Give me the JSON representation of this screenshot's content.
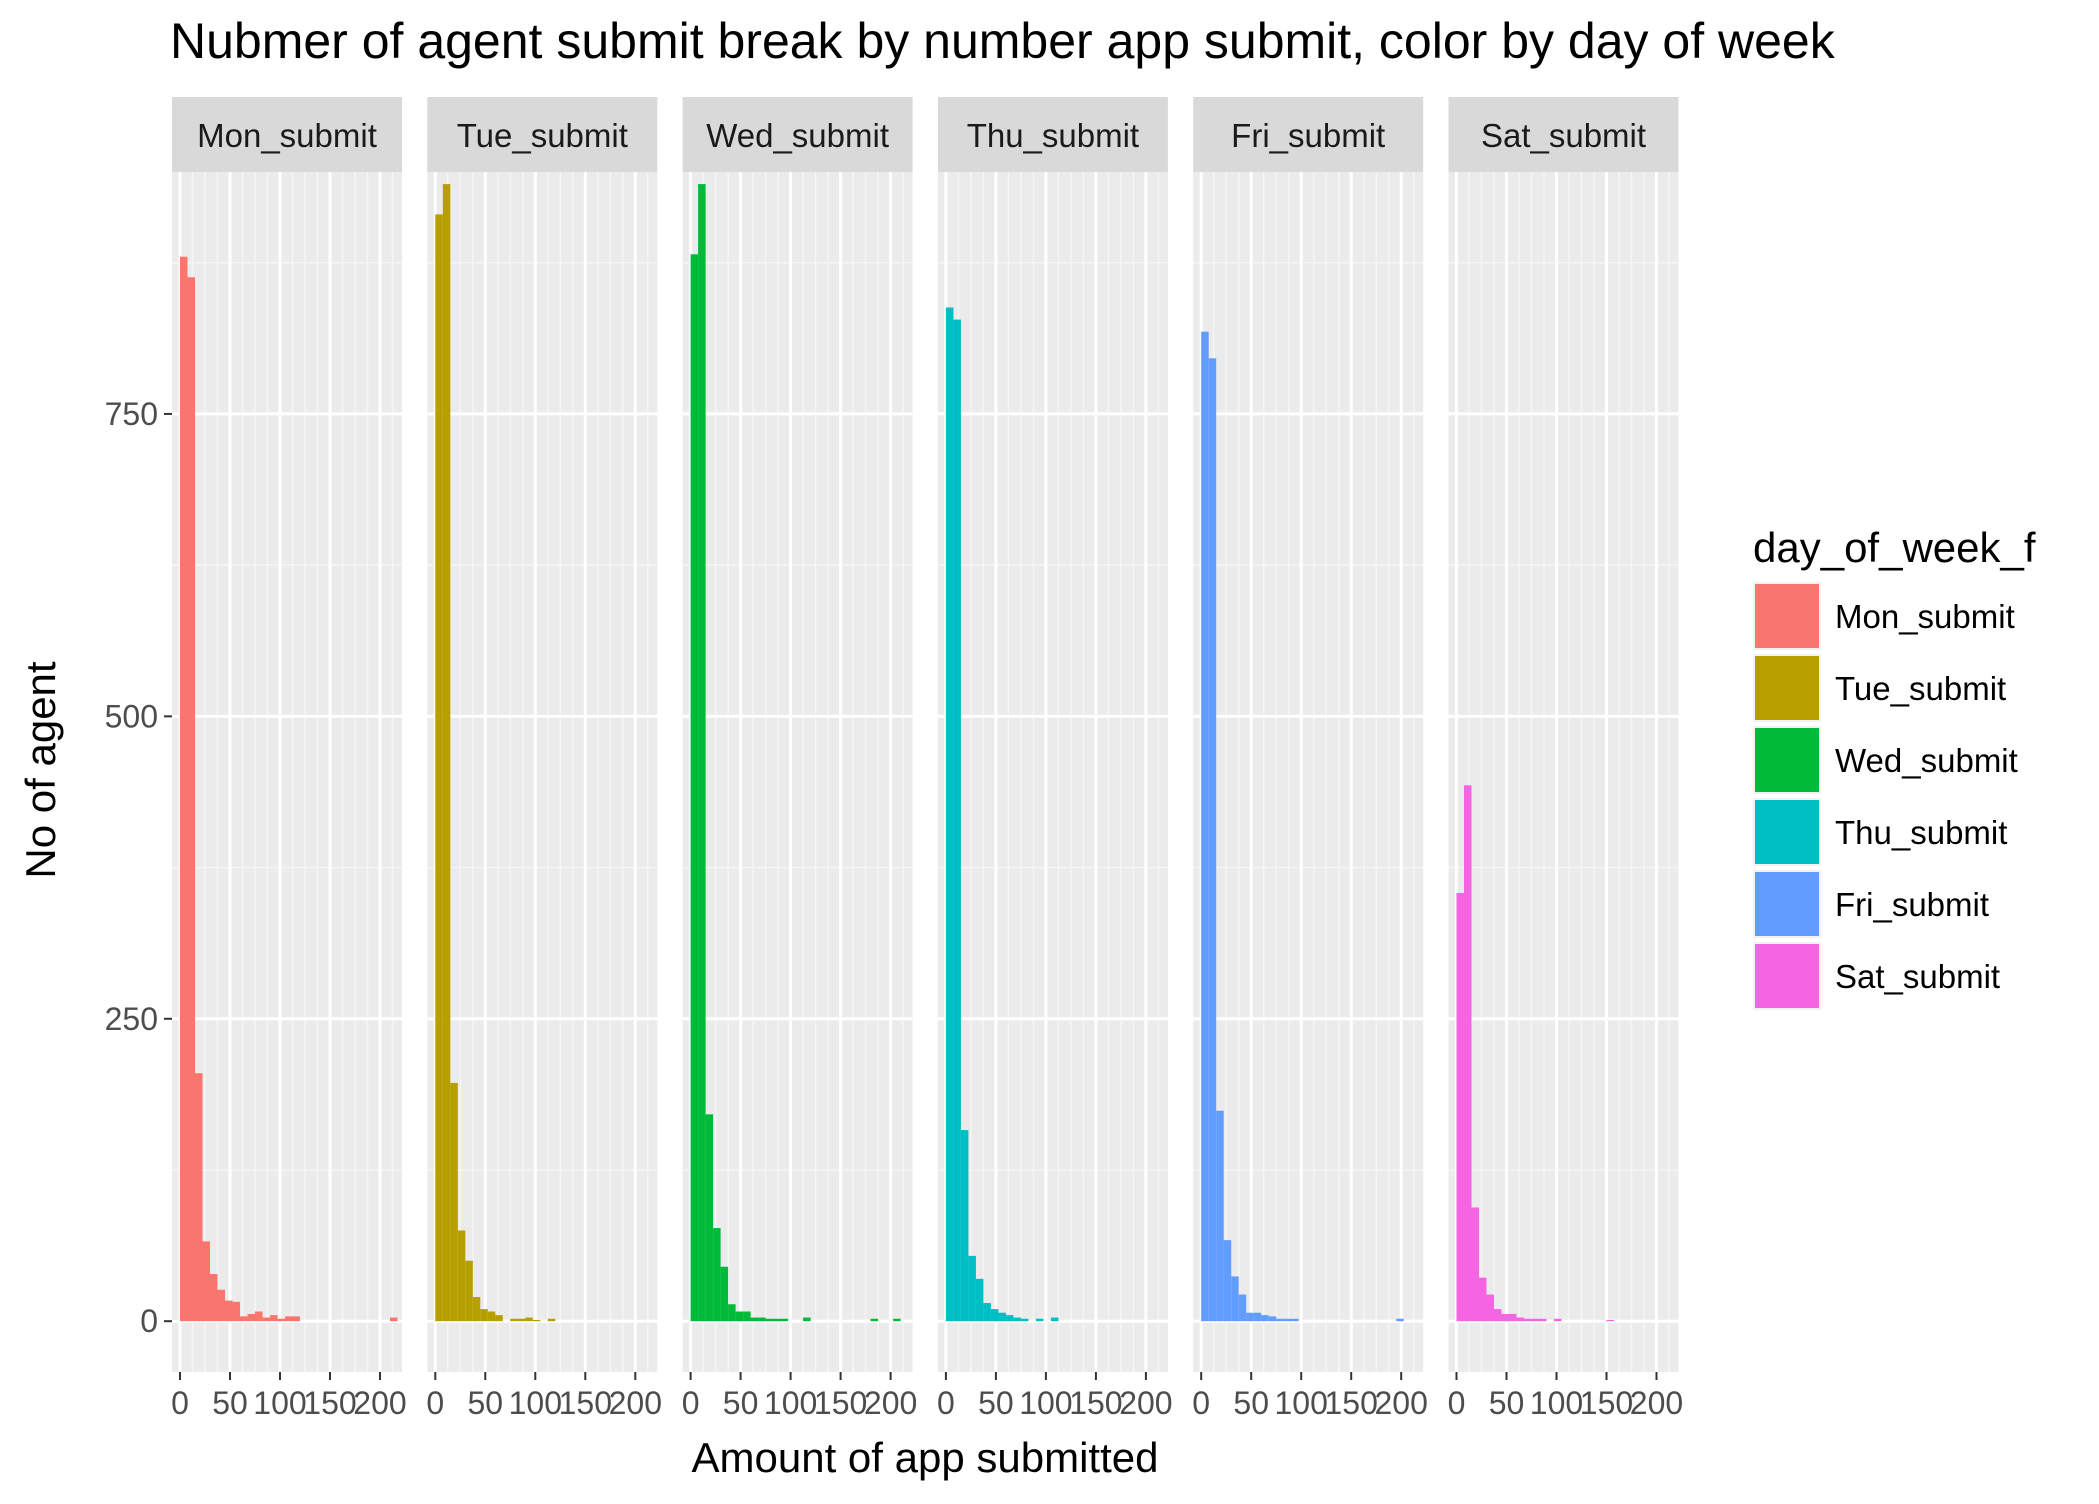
{
  "chart_data": {
    "type": "bar",
    "title": "Nubmer of agent submit break by number app submit, color by day of week",
    "xlabel": "Amount of app submitted",
    "ylabel": "No of agent",
    "xlim": [
      -8,
      222
    ],
    "ylim": [
      -42,
      950
    ],
    "x_ticks": [
      0,
      50,
      100,
      150,
      200
    ],
    "x_tick_labels": [
      "0",
      "50",
      "100",
      "150",
      "200"
    ],
    "y_ticks": [
      0,
      250,
      500,
      750
    ],
    "y_tick_labels": [
      "0",
      "250",
      "500",
      "750"
    ],
    "bin_width": 7.5,
    "bins_start": [
      0,
      7.5,
      15,
      22.5,
      30,
      37.5,
      45,
      52.5,
      60,
      67.5,
      75,
      82.5,
      90,
      97.5,
      105,
      112.5,
      120,
      127.5,
      135,
      142.5,
      150,
      157.5,
      165,
      172.5,
      180,
      187.5,
      195,
      202.5,
      210
    ],
    "legend": {
      "title": "day_of_week_f",
      "position": "right"
    },
    "grid": true,
    "series": [
      {
        "name": "Mon_submit",
        "color": "#F8766D",
        "values": [
          880,
          863,
          205,
          66,
          39,
          26,
          17,
          16,
          4,
          6,
          8,
          3,
          5,
          2,
          4,
          4,
          0,
          0,
          0,
          0,
          0,
          0,
          0,
          0,
          0,
          0,
          0,
          0,
          3
        ]
      },
      {
        "name": "Tue_submit",
        "color": "#B79F00",
        "values": [
          915,
          940,
          197,
          75,
          50,
          20,
          10,
          8,
          5,
          0,
          2,
          2,
          3,
          1,
          0,
          2,
          0,
          0,
          0,
          0,
          0,
          0,
          0,
          0,
          0,
          0,
          0,
          0,
          0
        ]
      },
      {
        "name": "Wed_submit",
        "color": "#00BA38",
        "values": [
          882,
          940,
          171,
          77,
          45,
          14,
          8,
          8,
          3,
          3,
          2,
          2,
          2,
          0,
          0,
          3,
          0,
          0,
          0,
          0,
          0,
          0,
          0,
          0,
          2,
          0,
          0,
          2,
          0
        ]
      },
      {
        "name": "Thu_submit",
        "color": "#00BFC4",
        "values": [
          838,
          828,
          158,
          54,
          35,
          15,
          10,
          7,
          5,
          3,
          2,
          0,
          2,
          0,
          3,
          0,
          0,
          0,
          0,
          0,
          0,
          0,
          0,
          0,
          0,
          0,
          0,
          0,
          0
        ]
      },
      {
        "name": "Fri_submit",
        "color": "#619CFF",
        "values": [
          818,
          796,
          174,
          67,
          37,
          22,
          7,
          7,
          5,
          4,
          2,
          2,
          2,
          0,
          0,
          0,
          0,
          0,
          0,
          0,
          0,
          0,
          0,
          0,
          0,
          0,
          2,
          0,
          0
        ]
      },
      {
        "name": "Sat_submit",
        "color": "#F564E3",
        "values": [
          354,
          443,
          94,
          36,
          22,
          10,
          6,
          6,
          3,
          2,
          2,
          2,
          0,
          2,
          0,
          0,
          0,
          0,
          0,
          0,
          1,
          0,
          0,
          0,
          0,
          0,
          0,
          0,
          0
        ]
      }
    ]
  }
}
